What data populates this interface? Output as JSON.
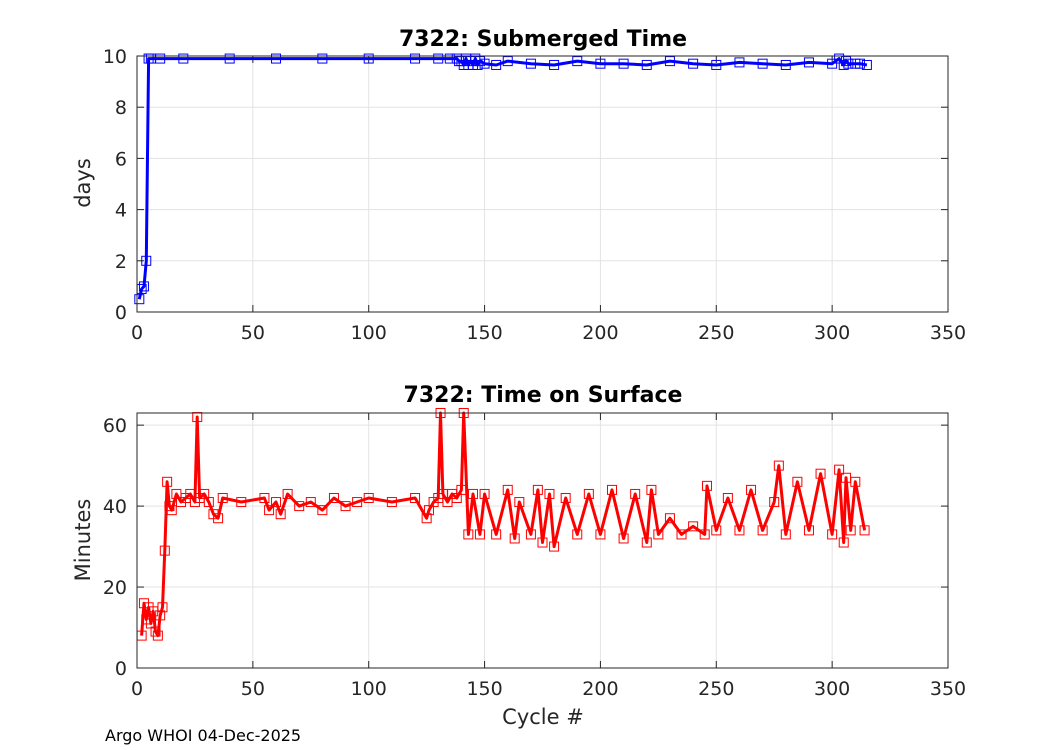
{
  "chart_data": [
    {
      "type": "line",
      "title": "7322: Submerged Time",
      "xlabel": "",
      "ylabel": "days",
      "xlim": [
        0,
        350
      ],
      "ylim": [
        0,
        10
      ],
      "xticks": [
        0,
        50,
        100,
        150,
        200,
        250,
        300,
        350
      ],
      "yticks": [
        0,
        2,
        4,
        6,
        8,
        10
      ],
      "grid": true,
      "marker": "square",
      "color": "#0000ff",
      "series": [
        {
          "x": [
            1,
            2,
            3,
            4,
            5,
            6,
            10,
            20,
            40,
            60,
            80,
            100,
            120,
            130,
            135,
            138,
            139,
            140,
            141,
            142,
            143,
            144,
            145,
            146,
            147,
            148,
            150,
            155,
            160,
            170,
            180,
            190,
            200,
            210,
            220,
            230,
            240,
            250,
            260,
            270,
            280,
            290,
            300,
            303,
            305,
            306,
            307,
            310,
            312,
            315
          ],
          "y": [
            0.5,
            0.9,
            1.0,
            2.0,
            9.9,
            9.9,
            9.9,
            9.9,
            9.9,
            9.9,
            9.9,
            9.9,
            9.9,
            9.9,
            9.9,
            9.9,
            9.8,
            9.8,
            9.65,
            9.9,
            9.65,
            9.8,
            9.65,
            9.9,
            9.65,
            9.8,
            9.7,
            9.65,
            9.8,
            9.7,
            9.65,
            9.8,
            9.7,
            9.7,
            9.65,
            9.8,
            9.7,
            9.65,
            9.75,
            9.7,
            9.65,
            9.75,
            9.7,
            9.9,
            9.65,
            9.8,
            9.7,
            9.7,
            9.7,
            9.65
          ]
        }
      ]
    },
    {
      "type": "line",
      "title": "7322: Time on Surface",
      "xlabel": "Cycle #",
      "ylabel": "Minutes",
      "xlim": [
        0,
        350
      ],
      "ylim": [
        0,
        63
      ],
      "xticks": [
        0,
        50,
        100,
        150,
        200,
        250,
        300,
        350
      ],
      "yticks": [
        0,
        20,
        40,
        60
      ],
      "grid": true,
      "marker": "square",
      "color": "#ff0000",
      "series": [
        {
          "x": [
            2,
            3,
            4,
            5,
            6,
            7,
            8,
            9,
            10,
            11,
            12,
            13,
            14,
            15,
            17,
            19,
            21,
            23,
            25,
            26,
            27,
            29,
            31,
            33,
            35,
            37,
            45,
            55,
            57,
            60,
            62,
            65,
            70,
            75,
            80,
            85,
            90,
            95,
            100,
            110,
            120,
            125,
            126,
            128,
            130,
            131,
            132,
            134,
            136,
            138,
            140,
            141,
            143,
            145,
            148,
            150,
            155,
            160,
            163,
            165,
            170,
            173,
            175,
            178,
            180,
            185,
            190,
            195,
            200,
            205,
            210,
            215,
            220,
            222,
            225,
            230,
            235,
            240,
            245,
            246,
            250,
            255,
            260,
            265,
            270,
            275,
            277,
            280,
            285,
            290,
            295,
            300,
            303,
            305,
            306,
            308,
            310,
            314
          ],
          "y": [
            8,
            16,
            12,
            15,
            11,
            14,
            9,
            8,
            13,
            15,
            29,
            46,
            40,
            39,
            43,
            41,
            42,
            43,
            41,
            62,
            42,
            43,
            41,
            38,
            37,
            42,
            41,
            42,
            39,
            41,
            38,
            43,
            40,
            41,
            39,
            42,
            40,
            41,
            42,
            41,
            42,
            37,
            39,
            41,
            42,
            63,
            43,
            41,
            43,
            42,
            44,
            63,
            33,
            43,
            33,
            43,
            33,
            44,
            32,
            41,
            33,
            44,
            31,
            43,
            30,
            42,
            33,
            43,
            33,
            44,
            32,
            43,
            31,
            44,
            33,
            37,
            33,
            35,
            33,
            45,
            34,
            42,
            34,
            44,
            34,
            41,
            50,
            33,
            46,
            34,
            48,
            33,
            49,
            31,
            47,
            34,
            46,
            34
          ]
        }
      ]
    }
  ],
  "footer": "Argo WHOI 04-Dec-2025"
}
